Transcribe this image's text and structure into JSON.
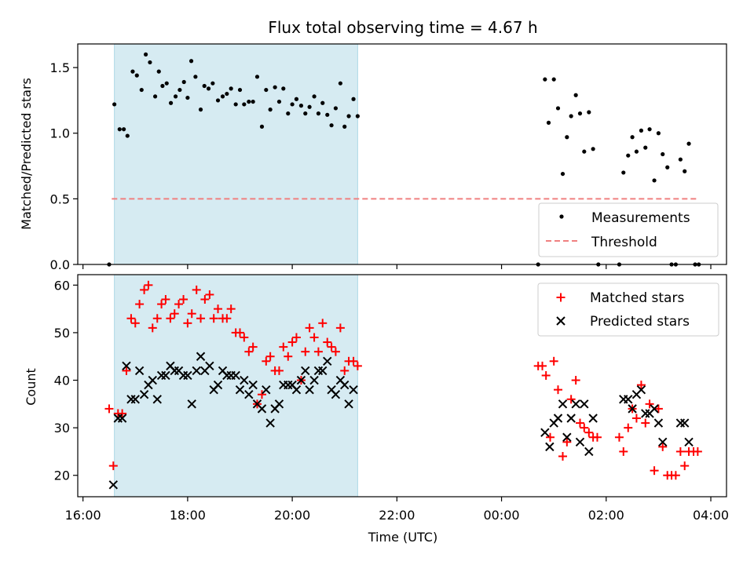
{
  "title": "Flux total observing time = 4.67 h",
  "colors": {
    "shade": "#add8e6",
    "measure": "#000000",
    "threshold": "#f08080",
    "matched": "#ff0000",
    "predicted": "#000000"
  },
  "chart_data": [
    {
      "type": "scatter",
      "panel": "top",
      "ylabel": "Matched/Predicted stars",
      "xlabel": "",
      "xlim": [
        15.9,
        28.3
      ],
      "ylim": [
        0,
        1.68
      ],
      "yticks": [
        0.0,
        0.5,
        1.0,
        1.5
      ],
      "ytick_labels": [
        "0.0",
        "0.5",
        "1.0",
        "1.5"
      ],
      "shaded_interval": [
        16.6,
        21.25
      ],
      "threshold": {
        "value": 0.5,
        "x_range": [
          16.55,
          27.75
        ]
      },
      "legend": {
        "position": "lower-right",
        "entries": [
          "Measurements",
          "Threshold"
        ]
      },
      "series": [
        {
          "name": "Measurements",
          "points": [
            [
              16.5,
              0
            ],
            [
              16.6,
              1.22
            ],
            [
              16.7,
              1.03
            ],
            [
              16.78,
              1.03
            ],
            [
              16.85,
              0.98
            ],
            [
              16.95,
              1.47
            ],
            [
              17.03,
              1.44
            ],
            [
              17.12,
              1.33
            ],
            [
              17.2,
              1.6
            ],
            [
              17.28,
              1.54
            ],
            [
              17.38,
              1.28
            ],
            [
              17.45,
              1.47
            ],
            [
              17.52,
              1.36
            ],
            [
              17.6,
              1.38
            ],
            [
              17.68,
              1.23
            ],
            [
              17.77,
              1.28
            ],
            [
              17.85,
              1.33
            ],
            [
              17.93,
              1.39
            ],
            [
              18.0,
              1.27
            ],
            [
              18.07,
              1.55
            ],
            [
              18.15,
              1.43
            ],
            [
              18.25,
              1.18
            ],
            [
              18.32,
              1.36
            ],
            [
              18.4,
              1.34
            ],
            [
              18.48,
              1.38
            ],
            [
              18.58,
              1.25
            ],
            [
              18.67,
              1.28
            ],
            [
              18.75,
              1.3
            ],
            [
              18.83,
              1.34
            ],
            [
              18.92,
              1.22
            ],
            [
              19.0,
              1.33
            ],
            [
              19.08,
              1.22
            ],
            [
              19.17,
              1.24
            ],
            [
              19.25,
              1.24
            ],
            [
              19.33,
              1.43
            ],
            [
              19.42,
              1.05
            ],
            [
              19.5,
              1.33
            ],
            [
              19.58,
              1.18
            ],
            [
              19.67,
              1.35
            ],
            [
              19.75,
              1.24
            ],
            [
              19.83,
              1.34
            ],
            [
              19.92,
              1.15
            ],
            [
              20.0,
              1.22
            ],
            [
              20.08,
              1.26
            ],
            [
              20.17,
              1.21
            ],
            [
              20.25,
              1.15
            ],
            [
              20.33,
              1.2
            ],
            [
              20.42,
              1.28
            ],
            [
              20.5,
              1.15
            ],
            [
              20.58,
              1.23
            ],
            [
              20.67,
              1.14
            ],
            [
              20.75,
              1.06
            ],
            [
              20.83,
              1.19
            ],
            [
              20.92,
              1.38
            ],
            [
              21.0,
              1.05
            ],
            [
              21.08,
              1.13
            ],
            [
              21.17,
              1.26
            ],
            [
              21.25,
              1.13
            ],
            [
              24.7,
              0
            ],
            [
              24.83,
              1.41
            ],
            [
              24.9,
              1.08
            ],
            [
              25.0,
              1.41
            ],
            [
              25.08,
              1.19
            ],
            [
              25.17,
              0.69
            ],
            [
              25.25,
              0.97
            ],
            [
              25.33,
              1.13
            ],
            [
              25.42,
              1.29
            ],
            [
              25.5,
              1.15
            ],
            [
              25.58,
              0.86
            ],
            [
              25.67,
              1.16
            ],
            [
              25.75,
              0.88
            ],
            [
              25.85,
              0
            ],
            [
              26.25,
              0
            ],
            [
              26.33,
              0.7
            ],
            [
              26.42,
              0.83
            ],
            [
              26.5,
              0.97
            ],
            [
              26.58,
              0.86
            ],
            [
              26.67,
              1.02
            ],
            [
              26.75,
              0.89
            ],
            [
              26.83,
              1.03
            ],
            [
              26.92,
              0.64
            ],
            [
              27.0,
              1.0
            ],
            [
              27.08,
              0.84
            ],
            [
              27.17,
              0.74
            ],
            [
              27.25,
              0
            ],
            [
              27.33,
              0
            ],
            [
              27.42,
              0.8
            ],
            [
              27.5,
              0.71
            ],
            [
              27.58,
              0.92
            ],
            [
              27.7,
              0
            ],
            [
              27.77,
              0
            ]
          ]
        }
      ]
    },
    {
      "type": "scatter",
      "panel": "bottom",
      "ylabel": "Count",
      "xlabel": "Time (UTC)",
      "xlim": [
        15.9,
        28.3
      ],
      "ylim": [
        15.5,
        62.2
      ],
      "yticks": [
        20,
        30,
        40,
        50,
        60
      ],
      "ytick_labels": [
        "20",
        "30",
        "40",
        "50",
        "60"
      ],
      "xticks": [
        16,
        18,
        20,
        22,
        24,
        26,
        28
      ],
      "xtick_labels": [
        "16:00",
        "18:00",
        "20:00",
        "22:00",
        "00:00",
        "02:00",
        "04:00"
      ],
      "shaded_interval": [
        16.6,
        21.25
      ],
      "legend": {
        "position": "top-right",
        "entries": [
          "Matched stars",
          "Predicted stars"
        ]
      },
      "series": [
        {
          "name": "Matched stars",
          "marker": "plus",
          "points": [
            [
              16.5,
              34
            ],
            [
              16.58,
              22
            ],
            [
              16.67,
              33
            ],
            [
              16.75,
              33
            ],
            [
              16.83,
              42
            ],
            [
              16.92,
              53
            ],
            [
              17.0,
              52
            ],
            [
              17.08,
              56
            ],
            [
              17.17,
              59
            ],
            [
              17.25,
              60
            ],
            [
              17.33,
              51
            ],
            [
              17.42,
              53
            ],
            [
              17.5,
              56
            ],
            [
              17.58,
              57
            ],
            [
              17.67,
              53
            ],
            [
              17.75,
              54
            ],
            [
              17.83,
              56
            ],
            [
              17.92,
              57
            ],
            [
              18.0,
              52
            ],
            [
              18.08,
              54
            ],
            [
              18.17,
              59
            ],
            [
              18.25,
              53
            ],
            [
              18.33,
              57
            ],
            [
              18.42,
              58
            ],
            [
              18.5,
              53
            ],
            [
              18.58,
              55
            ],
            [
              18.67,
              53
            ],
            [
              18.75,
              53
            ],
            [
              18.83,
              55
            ],
            [
              18.92,
              50
            ],
            [
              19.0,
              50
            ],
            [
              19.08,
              49
            ],
            [
              19.17,
              46
            ],
            [
              19.25,
              47
            ],
            [
              19.33,
              35
            ],
            [
              19.42,
              37
            ],
            [
              19.5,
              44
            ],
            [
              19.58,
              45
            ],
            [
              19.67,
              42
            ],
            [
              19.75,
              42
            ],
            [
              19.83,
              47
            ],
            [
              19.92,
              45
            ],
            [
              20.0,
              48
            ],
            [
              20.08,
              49
            ],
            [
              20.17,
              40
            ],
            [
              20.25,
              46
            ],
            [
              20.33,
              51
            ],
            [
              20.42,
              49
            ],
            [
              20.5,
              46
            ],
            [
              20.58,
              52
            ],
            [
              20.67,
              48
            ],
            [
              20.75,
              47
            ],
            [
              20.83,
              46
            ],
            [
              20.92,
              51
            ],
            [
              21.0,
              42
            ],
            [
              21.08,
              44
            ],
            [
              21.17,
              44
            ],
            [
              21.25,
              43
            ],
            [
              24.7,
              43
            ],
            [
              24.78,
              43
            ],
            [
              24.85,
              41
            ],
            [
              24.93,
              28
            ],
            [
              25.0,
              44
            ],
            [
              25.08,
              38
            ],
            [
              25.17,
              24
            ],
            [
              25.25,
              27
            ],
            [
              25.33,
              36
            ],
            [
              25.42,
              40
            ],
            [
              25.5,
              31
            ],
            [
              25.58,
              30
            ],
            [
              25.67,
              29
            ],
            [
              25.75,
              28
            ],
            [
              25.83,
              28
            ],
            [
              26.25,
              28
            ],
            [
              26.33,
              25
            ],
            [
              26.42,
              30
            ],
            [
              26.5,
              34
            ],
            [
              26.58,
              32
            ],
            [
              26.67,
              39
            ],
            [
              26.75,
              31
            ],
            [
              26.83,
              35
            ],
            [
              26.92,
              21
            ],
            [
              27.0,
              34
            ],
            [
              27.08,
              26
            ],
            [
              27.17,
              20
            ],
            [
              27.25,
              20
            ],
            [
              27.33,
              20
            ],
            [
              27.42,
              25
            ],
            [
              27.5,
              22
            ],
            [
              27.58,
              25
            ],
            [
              27.67,
              25
            ],
            [
              27.75,
              25
            ]
          ]
        },
        {
          "name": "Predicted stars",
          "marker": "x",
          "points": [
            [
              16.58,
              18
            ],
            [
              16.67,
              32
            ],
            [
              16.75,
              32
            ],
            [
              16.83,
              43
            ],
            [
              16.92,
              36
            ],
            [
              17.0,
              36
            ],
            [
              17.08,
              42
            ],
            [
              17.17,
              37
            ],
            [
              17.25,
              39
            ],
            [
              17.33,
              40
            ],
            [
              17.42,
              36
            ],
            [
              17.5,
              41
            ],
            [
              17.58,
              41
            ],
            [
              17.67,
              43
            ],
            [
              17.75,
              42
            ],
            [
              17.83,
              42
            ],
            [
              17.92,
              41
            ],
            [
              18.0,
              41
            ],
            [
              18.08,
              35
            ],
            [
              18.17,
              42
            ],
            [
              18.25,
              45
            ],
            [
              18.33,
              42
            ],
            [
              18.42,
              43
            ],
            [
              18.5,
              38
            ],
            [
              18.58,
              39
            ],
            [
              18.67,
              42
            ],
            [
              18.75,
              41
            ],
            [
              18.83,
              41
            ],
            [
              18.92,
              41
            ],
            [
              19.0,
              38
            ],
            [
              19.08,
              40
            ],
            [
              19.17,
              37
            ],
            [
              19.25,
              39
            ],
            [
              19.33,
              35
            ],
            [
              19.42,
              34
            ],
            [
              19.5,
              38
            ],
            [
              19.58,
              31
            ],
            [
              19.67,
              34
            ],
            [
              19.75,
              35
            ],
            [
              19.83,
              39
            ],
            [
              19.92,
              39
            ],
            [
              20.0,
              39
            ],
            [
              20.08,
              38
            ],
            [
              20.17,
              40
            ],
            [
              20.25,
              42
            ],
            [
              20.33,
              38
            ],
            [
              20.42,
              40
            ],
            [
              20.5,
              42
            ],
            [
              20.58,
              42
            ],
            [
              20.67,
              44
            ],
            [
              20.75,
              38
            ],
            [
              20.83,
              37
            ],
            [
              20.92,
              40
            ],
            [
              21.0,
              39
            ],
            [
              21.08,
              35
            ],
            [
              21.17,
              38
            ],
            [
              24.83,
              29
            ],
            [
              24.92,
              26
            ],
            [
              25.0,
              31
            ],
            [
              25.08,
              32
            ],
            [
              25.17,
              35
            ],
            [
              25.25,
              28
            ],
            [
              25.33,
              32
            ],
            [
              25.42,
              35
            ],
            [
              25.5,
              27
            ],
            [
              25.58,
              35
            ],
            [
              25.67,
              25
            ],
            [
              25.75,
              32
            ],
            [
              26.33,
              36
            ],
            [
              26.42,
              36
            ],
            [
              26.5,
              34
            ],
            [
              26.58,
              37
            ],
            [
              26.67,
              38
            ],
            [
              26.75,
              33
            ],
            [
              26.83,
              33
            ],
            [
              26.92,
              34
            ],
            [
              27.0,
              31
            ],
            [
              27.08,
              27
            ],
            [
              27.42,
              31
            ],
            [
              27.5,
              31
            ],
            [
              27.58,
              27
            ]
          ]
        }
      ]
    }
  ]
}
